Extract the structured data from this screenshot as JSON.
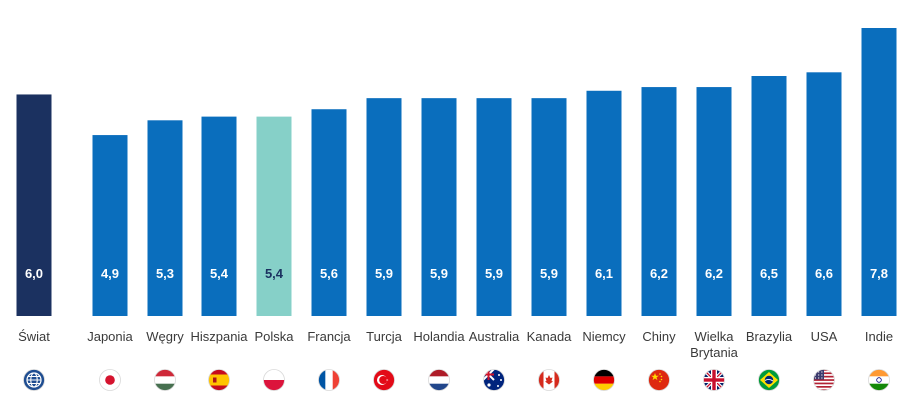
{
  "chart_data": {
    "type": "bar",
    "title": "",
    "xlabel": "",
    "ylabel": "",
    "ylim": [
      0,
      7.8
    ],
    "grid": false,
    "legend": "none",
    "categories": [
      "Świat",
      "Japonia",
      "Węgry",
      "Hiszpania",
      "Polska",
      "Francja",
      "Turcja",
      "Holandia",
      "Australia",
      "Kanada",
      "Niemcy",
      "Chiny",
      "Wielka Brytania",
      "Brazylia",
      "USA",
      "Indie"
    ],
    "values": [
      6.0,
      4.9,
      5.3,
      5.4,
      5.4,
      5.6,
      5.9,
      5.9,
      5.9,
      5.9,
      6.1,
      6.2,
      6.2,
      6.5,
      6.6,
      7.8
    ],
    "value_labels": [
      "6,0",
      "4,9",
      "5,3",
      "5,4",
      "5,4",
      "5,6",
      "5,9",
      "5,9",
      "5,9",
      "5,9",
      "6,1",
      "6,2",
      "6,2",
      "6,5",
      "6,6",
      "7,8"
    ],
    "icons": [
      "globe-icon",
      "japan-flag-icon",
      "hungary-flag-icon",
      "spain-flag-icon",
      "poland-flag-icon",
      "france-flag-icon",
      "turkey-flag-icon",
      "netherlands-flag-icon",
      "australia-flag-icon",
      "canada-flag-icon",
      "germany-flag-icon",
      "china-flag-icon",
      "uk-flag-icon",
      "brazil-flag-icon",
      "usa-flag-icon",
      "india-flag-icon"
    ],
    "colors": {
      "world": "#1b3160",
      "highlight": "#86d0c8",
      "default": "#0a6ebd",
      "label_light": "#ffffff",
      "label_dark": "#1b3160"
    }
  }
}
